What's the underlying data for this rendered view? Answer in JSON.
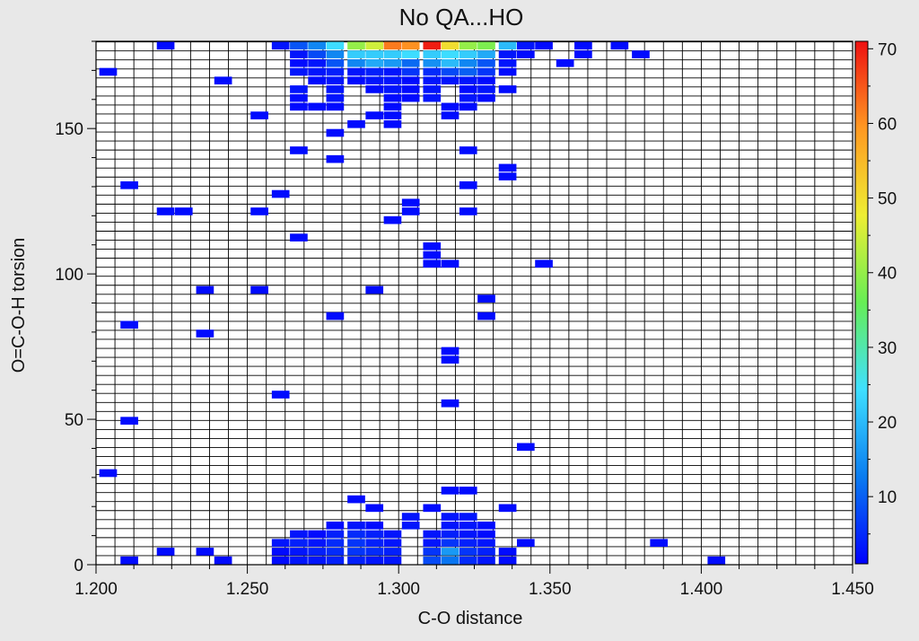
{
  "chart_data": {
    "type": "heatmap",
    "title": "No QA...HO",
    "xlabel": "C-O distance",
    "ylabel": "O=C-O-H torsion",
    "xlim": [
      1.2,
      1.45
    ],
    "ylim": [
      0,
      180
    ],
    "x_ticks": [
      1.2,
      1.25,
      1.3,
      1.35,
      1.4,
      1.45
    ],
    "x_tick_labels": [
      "1.200",
      "1.250",
      "1.300",
      "1.350",
      "1.400",
      "1.450"
    ],
    "y_ticks": [
      0,
      50,
      100,
      150
    ],
    "y_tick_labels": [
      "0",
      "50",
      "100",
      "150"
    ],
    "colorbar": {
      "min": 1,
      "max": 71,
      "ticks": [
        10,
        20,
        30,
        40,
        50,
        60,
        70
      ],
      "tick_labels": [
        "10",
        "20",
        "30",
        "40",
        "50",
        "60",
        "70"
      ],
      "colors": [
        "#0000ff",
        "#0a7cf0",
        "#3fe0ff",
        "#66ee55",
        "#eeee33",
        "#ff9922",
        "#ee1111"
      ]
    },
    "grid": true,
    "bin_x_width": 0.00625,
    "bin_y_height": 3.1,
    "cells": [
      {
        "x": 1.223,
        "y": 178.5,
        "v": 2
      },
      {
        "x": 1.261,
        "y": 178.5,
        "v": 3
      },
      {
        "x": 1.267,
        "y": 178.5,
        "v": 9
      },
      {
        "x": 1.273,
        "y": 178.5,
        "v": 14
      },
      {
        "x": 1.279,
        "y": 178.5,
        "v": 24
      },
      {
        "x": 1.286,
        "y": 178.5,
        "v": 40
      },
      {
        "x": 1.292,
        "y": 178.5,
        "v": 45
      },
      {
        "x": 1.298,
        "y": 178.5,
        "v": 62
      },
      {
        "x": 1.304,
        "y": 178.5,
        "v": 60
      },
      {
        "x": 1.311,
        "y": 178.5,
        "v": 70
      },
      {
        "x": 1.317,
        "y": 178.5,
        "v": 50
      },
      {
        "x": 1.323,
        "y": 178.5,
        "v": 40
      },
      {
        "x": 1.329,
        "y": 178.5,
        "v": 38
      },
      {
        "x": 1.336,
        "y": 178.5,
        "v": 20
      },
      {
        "x": 1.342,
        "y": 178.5,
        "v": 3
      },
      {
        "x": 1.348,
        "y": 178.5,
        "v": 2
      },
      {
        "x": 1.361,
        "y": 178.5,
        "v": 2
      },
      {
        "x": 1.373,
        "y": 178.5,
        "v": 2
      },
      {
        "x": 1.267,
        "y": 175.5,
        "v": 3
      },
      {
        "x": 1.273,
        "y": 175.5,
        "v": 8
      },
      {
        "x": 1.279,
        "y": 175.5,
        "v": 14
      },
      {
        "x": 1.286,
        "y": 175.5,
        "v": 22
      },
      {
        "x": 1.292,
        "y": 175.5,
        "v": 22
      },
      {
        "x": 1.298,
        "y": 175.5,
        "v": 22
      },
      {
        "x": 1.304,
        "y": 175.5,
        "v": 24
      },
      {
        "x": 1.311,
        "y": 175.5,
        "v": 22
      },
      {
        "x": 1.317,
        "y": 175.5,
        "v": 24
      },
      {
        "x": 1.323,
        "y": 175.5,
        "v": 22
      },
      {
        "x": 1.329,
        "y": 175.5,
        "v": 18
      },
      {
        "x": 1.336,
        "y": 175.5,
        "v": 3
      },
      {
        "x": 1.342,
        "y": 175.5,
        "v": 2
      },
      {
        "x": 1.361,
        "y": 175.5,
        "v": 2
      },
      {
        "x": 1.38,
        "y": 175.5,
        "v": 2
      },
      {
        "x": 1.267,
        "y": 172.5,
        "v": 2
      },
      {
        "x": 1.273,
        "y": 172.5,
        "v": 3
      },
      {
        "x": 1.279,
        "y": 172.5,
        "v": 9
      },
      {
        "x": 1.286,
        "y": 172.5,
        "v": 14
      },
      {
        "x": 1.292,
        "y": 172.5,
        "v": 18
      },
      {
        "x": 1.298,
        "y": 172.5,
        "v": 16
      },
      {
        "x": 1.304,
        "y": 172.5,
        "v": 11
      },
      {
        "x": 1.311,
        "y": 172.5,
        "v": 15
      },
      {
        "x": 1.317,
        "y": 172.5,
        "v": 20
      },
      {
        "x": 1.323,
        "y": 172.5,
        "v": 14
      },
      {
        "x": 1.329,
        "y": 172.5,
        "v": 9
      },
      {
        "x": 1.336,
        "y": 172.5,
        "v": 3
      },
      {
        "x": 1.355,
        "y": 172.5,
        "v": 2
      },
      {
        "x": 1.204,
        "y": 169.5,
        "v": 2
      },
      {
        "x": 1.267,
        "y": 169.5,
        "v": 3
      },
      {
        "x": 1.273,
        "y": 169.5,
        "v": 3
      },
      {
        "x": 1.279,
        "y": 169.5,
        "v": 4
      },
      {
        "x": 1.286,
        "y": 169.5,
        "v": 3
      },
      {
        "x": 1.292,
        "y": 169.5,
        "v": 4
      },
      {
        "x": 1.298,
        "y": 169.5,
        "v": 3
      },
      {
        "x": 1.304,
        "y": 169.5,
        "v": 6
      },
      {
        "x": 1.311,
        "y": 169.5,
        "v": 5
      },
      {
        "x": 1.317,
        "y": 169.5,
        "v": 8
      },
      {
        "x": 1.323,
        "y": 169.5,
        "v": 10
      },
      {
        "x": 1.329,
        "y": 169.5,
        "v": 6
      },
      {
        "x": 1.336,
        "y": 169.5,
        "v": 2
      },
      {
        "x": 1.242,
        "y": 166.5,
        "v": 2
      },
      {
        "x": 1.273,
        "y": 166.5,
        "v": 2
      },
      {
        "x": 1.279,
        "y": 166.5,
        "v": 3
      },
      {
        "x": 1.286,
        "y": 166.5,
        "v": 2
      },
      {
        "x": 1.292,
        "y": 166.5,
        "v": 3
      },
      {
        "x": 1.298,
        "y": 166.5,
        "v": 3
      },
      {
        "x": 1.304,
        "y": 166.5,
        "v": 2
      },
      {
        "x": 1.311,
        "y": 166.5,
        "v": 3
      },
      {
        "x": 1.317,
        "y": 166.5,
        "v": 3
      },
      {
        "x": 1.323,
        "y": 166.5,
        "v": 3
      },
      {
        "x": 1.329,
        "y": 166.5,
        "v": 2
      },
      {
        "x": 1.267,
        "y": 163.5,
        "v": 3
      },
      {
        "x": 1.279,
        "y": 163.5,
        "v": 3
      },
      {
        "x": 1.292,
        "y": 163.5,
        "v": 2
      },
      {
        "x": 1.298,
        "y": 163.5,
        "v": 3
      },
      {
        "x": 1.304,
        "y": 163.5,
        "v": 2
      },
      {
        "x": 1.311,
        "y": 163.5,
        "v": 3
      },
      {
        "x": 1.323,
        "y": 163.5,
        "v": 2
      },
      {
        "x": 1.329,
        "y": 163.5,
        "v": 3
      },
      {
        "x": 1.336,
        "y": 163.5,
        "v": 2
      },
      {
        "x": 1.267,
        "y": 160.5,
        "v": 2
      },
      {
        "x": 1.279,
        "y": 160.5,
        "v": 3
      },
      {
        "x": 1.298,
        "y": 160.5,
        "v": 2
      },
      {
        "x": 1.304,
        "y": 160.5,
        "v": 2
      },
      {
        "x": 1.311,
        "y": 160.5,
        "v": 3
      },
      {
        "x": 1.323,
        "y": 160.5,
        "v": 3
      },
      {
        "x": 1.329,
        "y": 160.5,
        "v": 2
      },
      {
        "x": 1.267,
        "y": 157.5,
        "v": 2
      },
      {
        "x": 1.273,
        "y": 157.5,
        "v": 2
      },
      {
        "x": 1.279,
        "y": 157.5,
        "v": 2
      },
      {
        "x": 1.298,
        "y": 157.5,
        "v": 2
      },
      {
        "x": 1.317,
        "y": 157.5,
        "v": 2
      },
      {
        "x": 1.323,
        "y": 157.5,
        "v": 2
      },
      {
        "x": 1.254,
        "y": 154.5,
        "v": 2
      },
      {
        "x": 1.292,
        "y": 154.5,
        "v": 2
      },
      {
        "x": 1.298,
        "y": 154.5,
        "v": 2
      },
      {
        "x": 1.317,
        "y": 154.5,
        "v": 2
      },
      {
        "x": 1.286,
        "y": 151.5,
        "v": 2
      },
      {
        "x": 1.298,
        "y": 151.5,
        "v": 2
      },
      {
        "x": 1.279,
        "y": 148.5,
        "v": 2
      },
      {
        "x": 1.267,
        "y": 142.5,
        "v": 2
      },
      {
        "x": 1.323,
        "y": 142.5,
        "v": 2
      },
      {
        "x": 1.279,
        "y": 139.5,
        "v": 2
      },
      {
        "x": 1.336,
        "y": 136.5,
        "v": 2
      },
      {
        "x": 1.336,
        "y": 133.5,
        "v": 2
      },
      {
        "x": 1.211,
        "y": 130.5,
        "v": 2
      },
      {
        "x": 1.323,
        "y": 130.5,
        "v": 2
      },
      {
        "x": 1.261,
        "y": 127.5,
        "v": 2
      },
      {
        "x": 1.304,
        "y": 124.5,
        "v": 2
      },
      {
        "x": 1.223,
        "y": 121.5,
        "v": 2
      },
      {
        "x": 1.229,
        "y": 121.5,
        "v": 2
      },
      {
        "x": 1.254,
        "y": 121.5,
        "v": 2
      },
      {
        "x": 1.304,
        "y": 121.5,
        "v": 2
      },
      {
        "x": 1.323,
        "y": 121.5,
        "v": 2
      },
      {
        "x": 1.298,
        "y": 118.5,
        "v": 2
      },
      {
        "x": 1.267,
        "y": 112.5,
        "v": 2
      },
      {
        "x": 1.311,
        "y": 109.5,
        "v": 2
      },
      {
        "x": 1.311,
        "y": 106.5,
        "v": 2
      },
      {
        "x": 1.311,
        "y": 103.5,
        "v": 2
      },
      {
        "x": 1.317,
        "y": 103.5,
        "v": 2
      },
      {
        "x": 1.348,
        "y": 103.5,
        "v": 2
      },
      {
        "x": 1.236,
        "y": 94.5,
        "v": 2
      },
      {
        "x": 1.254,
        "y": 94.5,
        "v": 2
      },
      {
        "x": 1.292,
        "y": 94.5,
        "v": 2
      },
      {
        "x": 1.329,
        "y": 91.5,
        "v": 2
      },
      {
        "x": 1.279,
        "y": 85.5,
        "v": 2
      },
      {
        "x": 1.329,
        "y": 85.5,
        "v": 2
      },
      {
        "x": 1.211,
        "y": 82.5,
        "v": 2
      },
      {
        "x": 1.236,
        "y": 79.5,
        "v": 2
      },
      {
        "x": 1.317,
        "y": 73.5,
        "v": 2
      },
      {
        "x": 1.317,
        "y": 70.5,
        "v": 2
      },
      {
        "x": 1.261,
        "y": 58.5,
        "v": 2
      },
      {
        "x": 1.317,
        "y": 55.5,
        "v": 2
      },
      {
        "x": 1.211,
        "y": 49.5,
        "v": 2
      },
      {
        "x": 1.342,
        "y": 40.5,
        "v": 2
      },
      {
        "x": 1.204,
        "y": 31.5,
        "v": 2
      },
      {
        "x": 1.317,
        "y": 25.5,
        "v": 2
      },
      {
        "x": 1.323,
        "y": 25.5,
        "v": 2
      },
      {
        "x": 1.286,
        "y": 22.5,
        "v": 2
      },
      {
        "x": 1.292,
        "y": 19.5,
        "v": 2
      },
      {
        "x": 1.311,
        "y": 19.5,
        "v": 2
      },
      {
        "x": 1.336,
        "y": 19.5,
        "v": 2
      },
      {
        "x": 1.304,
        "y": 16.5,
        "v": 3
      },
      {
        "x": 1.317,
        "y": 16.5,
        "v": 3
      },
      {
        "x": 1.323,
        "y": 16.5,
        "v": 3
      },
      {
        "x": 1.279,
        "y": 13.5,
        "v": 2
      },
      {
        "x": 1.286,
        "y": 13.5,
        "v": 3
      },
      {
        "x": 1.292,
        "y": 13.5,
        "v": 2
      },
      {
        "x": 1.304,
        "y": 13.5,
        "v": 3
      },
      {
        "x": 1.317,
        "y": 13.5,
        "v": 3
      },
      {
        "x": 1.323,
        "y": 13.5,
        "v": 3
      },
      {
        "x": 1.329,
        "y": 13.5,
        "v": 2
      },
      {
        "x": 1.267,
        "y": 10.5,
        "v": 3
      },
      {
        "x": 1.273,
        "y": 10.5,
        "v": 2
      },
      {
        "x": 1.279,
        "y": 10.5,
        "v": 4
      },
      {
        "x": 1.286,
        "y": 10.5,
        "v": 5
      },
      {
        "x": 1.292,
        "y": 10.5,
        "v": 4
      },
      {
        "x": 1.298,
        "y": 10.5,
        "v": 3
      },
      {
        "x": 1.311,
        "y": 10.5,
        "v": 3
      },
      {
        "x": 1.317,
        "y": 10.5,
        "v": 4
      },
      {
        "x": 1.323,
        "y": 10.5,
        "v": 3
      },
      {
        "x": 1.329,
        "y": 10.5,
        "v": 2
      },
      {
        "x": 1.261,
        "y": 7.5,
        "v": 3
      },
      {
        "x": 1.267,
        "y": 7.5,
        "v": 4
      },
      {
        "x": 1.273,
        "y": 7.5,
        "v": 3
      },
      {
        "x": 1.279,
        "y": 7.5,
        "v": 5
      },
      {
        "x": 1.286,
        "y": 7.5,
        "v": 6
      },
      {
        "x": 1.292,
        "y": 7.5,
        "v": 4
      },
      {
        "x": 1.298,
        "y": 7.5,
        "v": 3
      },
      {
        "x": 1.311,
        "y": 7.5,
        "v": 3
      },
      {
        "x": 1.317,
        "y": 7.5,
        "v": 6
      },
      {
        "x": 1.323,
        "y": 7.5,
        "v": 4
      },
      {
        "x": 1.329,
        "y": 7.5,
        "v": 3
      },
      {
        "x": 1.342,
        "y": 7.5,
        "v": 2
      },
      {
        "x": 1.386,
        "y": 7.5,
        "v": 2
      },
      {
        "x": 1.261,
        "y": 4.5,
        "v": 2
      },
      {
        "x": 1.267,
        "y": 4.5,
        "v": 3
      },
      {
        "x": 1.273,
        "y": 4.5,
        "v": 4
      },
      {
        "x": 1.279,
        "y": 4.5,
        "v": 5
      },
      {
        "x": 1.286,
        "y": 4.5,
        "v": 6
      },
      {
        "x": 1.292,
        "y": 4.5,
        "v": 5
      },
      {
        "x": 1.298,
        "y": 4.5,
        "v": 4
      },
      {
        "x": 1.311,
        "y": 4.5,
        "v": 6
      },
      {
        "x": 1.317,
        "y": 4.5,
        "v": 16
      },
      {
        "x": 1.323,
        "y": 4.5,
        "v": 6
      },
      {
        "x": 1.329,
        "y": 4.5,
        "v": 4
      },
      {
        "x": 1.336,
        "y": 4.5,
        "v": 2
      },
      {
        "x": 1.223,
        "y": 4.5,
        "v": 2
      },
      {
        "x": 1.236,
        "y": 4.5,
        "v": 2
      },
      {
        "x": 1.211,
        "y": 1.5,
        "v": 2
      },
      {
        "x": 1.242,
        "y": 1.5,
        "v": 2
      },
      {
        "x": 1.261,
        "y": 1.5,
        "v": 2
      },
      {
        "x": 1.267,
        "y": 1.5,
        "v": 3
      },
      {
        "x": 1.273,
        "y": 1.5,
        "v": 3
      },
      {
        "x": 1.279,
        "y": 1.5,
        "v": 4
      },
      {
        "x": 1.286,
        "y": 1.5,
        "v": 4
      },
      {
        "x": 1.292,
        "y": 1.5,
        "v": 3
      },
      {
        "x": 1.298,
        "y": 1.5,
        "v": 3
      },
      {
        "x": 1.311,
        "y": 1.5,
        "v": 8
      },
      {
        "x": 1.317,
        "y": 1.5,
        "v": 12
      },
      {
        "x": 1.323,
        "y": 1.5,
        "v": 5
      },
      {
        "x": 1.329,
        "y": 1.5,
        "v": 3
      },
      {
        "x": 1.336,
        "y": 1.5,
        "v": 2
      },
      {
        "x": 1.405,
        "y": 1.5,
        "v": 2
      }
    ]
  }
}
